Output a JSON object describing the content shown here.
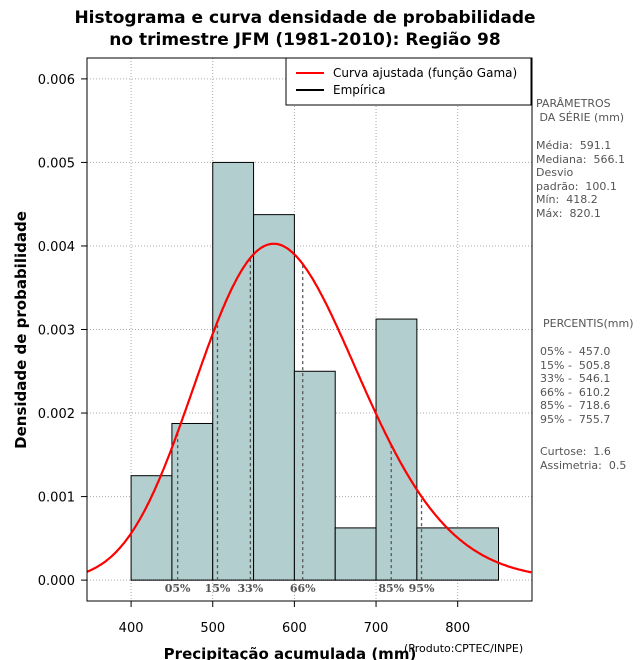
{
  "chart_data": {
    "type": "bar",
    "title": [
      "Histograma e curva densidade de probabilidade",
      "no trimestre JFM (1981-2010): Região 98"
    ],
    "xlabel": "Precipitação acumulada (mm)",
    "ylabel": "Densidade de probabilidade",
    "credit": "(Produto:CPTEC/INPE)",
    "xlim": [
      346,
      891
    ],
    "ylim": [
      -0.00025,
      0.00625
    ],
    "xticks": [
      400,
      500,
      600,
      700,
      800
    ],
    "yticks": [
      "0.000",
      "0.001",
      "0.002",
      "0.003",
      "0.004",
      "0.005",
      "0.006"
    ],
    "ytick_values": [
      0,
      0.001,
      0.002,
      0.003,
      0.004,
      0.005,
      0.006
    ],
    "grid": true,
    "bins": [
      {
        "x0": 400,
        "x1": 450,
        "density": 0.00125
      },
      {
        "x0": 450,
        "x1": 500,
        "density": 0.001875
      },
      {
        "x0": 500,
        "x1": 550,
        "density": 0.005
      },
      {
        "x0": 550,
        "x1": 600,
        "density": 0.004375
      },
      {
        "x0": 600,
        "x1": 650,
        "density": 0.0025
      },
      {
        "x0": 650,
        "x1": 700,
        "density": 0.000625
      },
      {
        "x0": 700,
        "x1": 750,
        "density": 0.003125
      },
      {
        "x0": 750,
        "x1": 850,
        "density": 0.000625
      }
    ],
    "gamma_fit": {
      "shape": 34.8,
      "scale": 17.0
    },
    "percentile_markers": [
      {
        "label": "05%",
        "value": 457.0
      },
      {
        "label": "15%",
        "value": 505.8
      },
      {
        "label": "33%",
        "value": 546.1
      },
      {
        "label": "66%",
        "value": 610.2
      },
      {
        "label": "85%",
        "value": 718.6
      },
      {
        "label": "95%",
        "value": 755.7
      }
    ],
    "legend": {
      "position": "top-right",
      "entries": [
        {
          "label": "Curva ajustada (função Gama)",
          "color": "#ff0000"
        },
        {
          "label": "Empírica",
          "color": "#000000"
        }
      ]
    },
    "colors": {
      "bar_fill": "#b3cece",
      "curve": "#ff0000",
      "grid": "#aaaaaa",
      "percentile_line": "#555555"
    }
  },
  "side_panel": {
    "params_heading": "PARÂMETROS\n DA SÉRIE (mm)",
    "params_values": "Média:  591.1\nMediana:  566.1\nDesvio\npadrão:  100.1\nMín:  418.2\nMáx:  820.1",
    "percentis_heading": "PERCENTIS(mm)",
    "percentis_values": "05% -  457.0\n15% -  505.8\n33% -  546.1\n66% -  610.2\n85% -  718.6\n95% -  755.7",
    "shape_values": "Curtose:  1.6\nAssimetria:  0.5"
  }
}
